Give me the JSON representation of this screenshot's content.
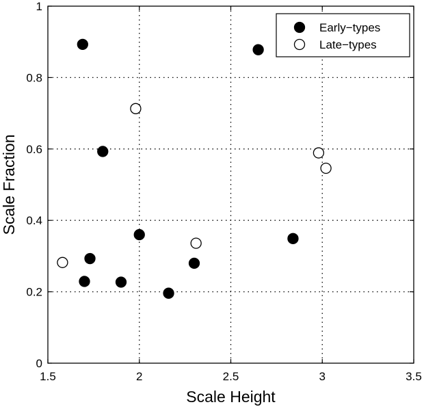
{
  "chart_data": {
    "type": "scatter",
    "xlabel": "Scale Height",
    "ylabel": "Scale Fraction",
    "xlim": [
      1.5,
      3.5
    ],
    "ylim": [
      0,
      1
    ],
    "xticks": [
      1.5,
      2,
      2.5,
      3,
      3.5
    ],
    "xtick_labels": [
      "1.5",
      "2",
      "2.5",
      "3",
      "3.5"
    ],
    "yticks": [
      0,
      0.2,
      0.4,
      0.6,
      0.8,
      1
    ],
    "ytick_labels": [
      "0",
      "0.2",
      "0.4",
      "0.6",
      "0.8",
      "1"
    ],
    "grid": true,
    "legend_position": "top-right",
    "series": [
      {
        "name": "Early−types",
        "marker": "filled-circle",
        "color": "#000000",
        "x": [
          1.69,
          1.8,
          2.65,
          2.0,
          1.73,
          1.7,
          1.9,
          2.16,
          2.3,
          2.84
        ],
        "y": [
          0.893,
          0.593,
          0.878,
          0.36,
          0.293,
          0.229,
          0.227,
          0.196,
          0.28,
          0.349
        ]
      },
      {
        "name": "Late−types",
        "marker": "open-circle",
        "color": "#000000",
        "x": [
          1.98,
          2.98,
          3.02,
          1.58,
          2.31
        ],
        "y": [
          0.713,
          0.589,
          0.546,
          0.282,
          0.336
        ]
      }
    ]
  }
}
